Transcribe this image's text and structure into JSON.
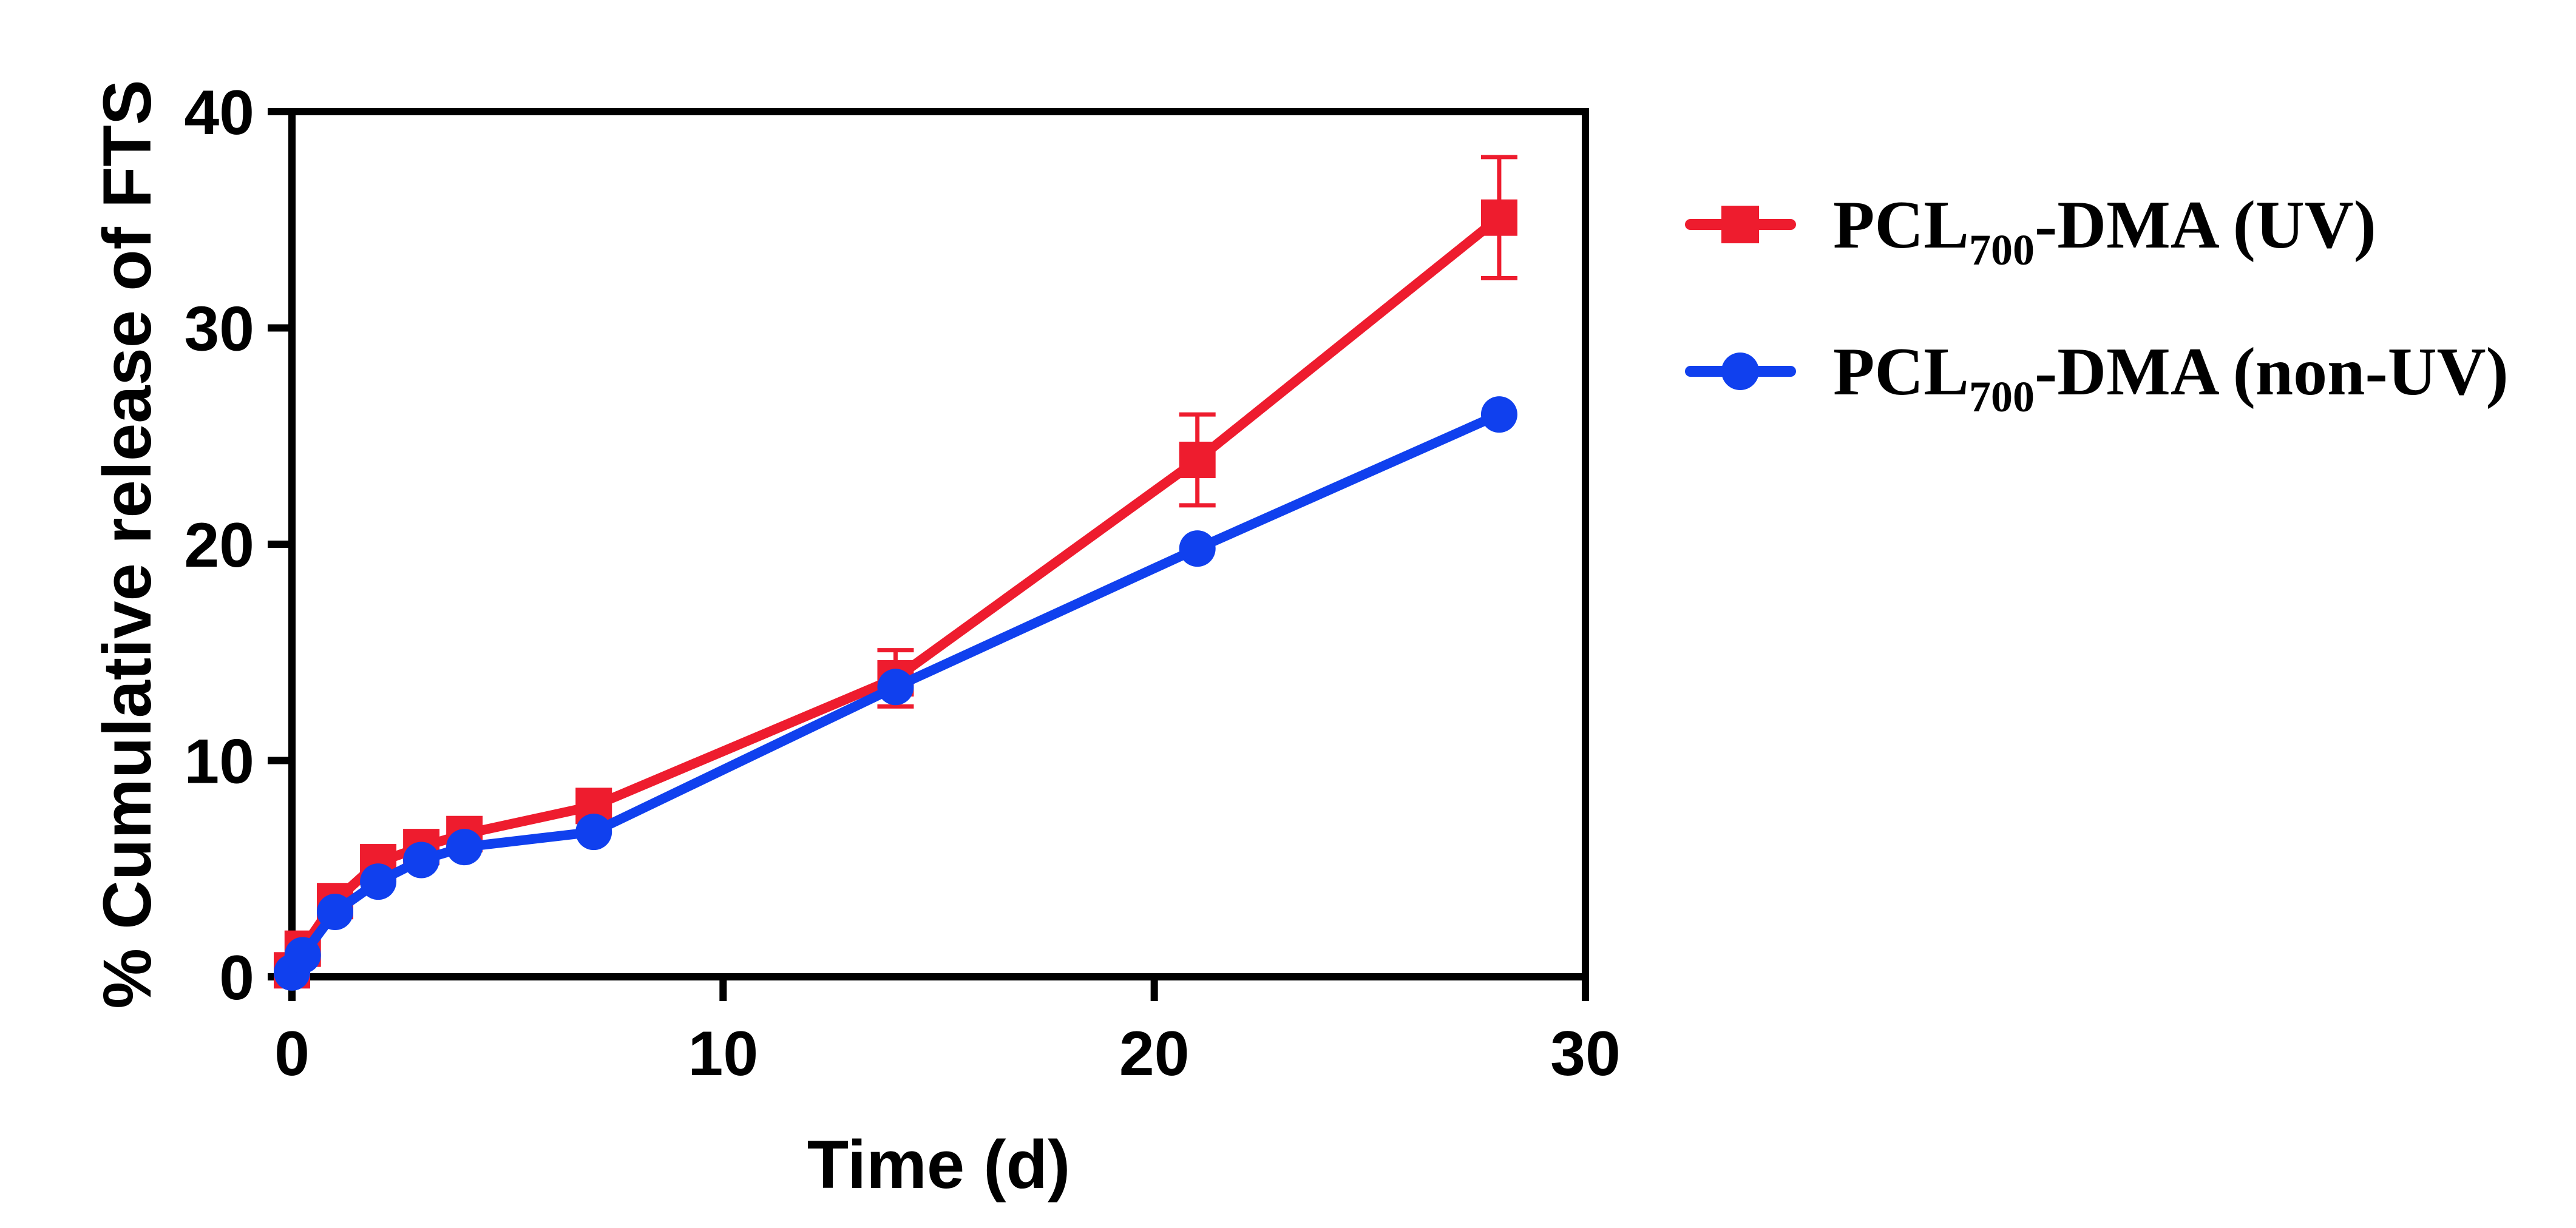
{
  "chart_data": {
    "type": "line",
    "title": "",
    "xlabel": "Time (d)",
    "ylabel": "% Cumulative release of FTS",
    "xlim": [
      0,
      30
    ],
    "ylim": [
      0,
      40
    ],
    "xticks": [
      0,
      10,
      20,
      30
    ],
    "yticks": [
      0,
      10,
      20,
      30,
      40
    ],
    "x_tick_labels": [
      "0",
      "10",
      "20",
      "30"
    ],
    "y_tick_labels": [
      "0",
      "10",
      "20",
      "30",
      "40"
    ],
    "grid": false,
    "legend_position": "right",
    "series": [
      {
        "name": "PCL700-DMA (UV)",
        "legend_main": "PCL",
        "legend_sub": "700",
        "legend_rest": "-DMA (UV)",
        "color": "#ee1c2e",
        "marker": "square",
        "x": [
          0,
          0.25,
          1,
          2,
          3,
          4,
          7,
          14,
          21,
          28
        ],
        "y": [
          0.3,
          1.3,
          3.5,
          5.3,
          6.0,
          6.6,
          7.9,
          13.8,
          23.9,
          35.1
        ],
        "error": [
          0,
          0,
          0,
          0,
          0,
          0,
          0,
          1.3,
          2.1,
          2.8
        ]
      },
      {
        "name": "PCL700-DMA (non-UV)",
        "legend_main": "PCL",
        "legend_sub": "700",
        "legend_rest": "-DMA (non-UV)",
        "color": "#1040ee",
        "marker": "circle",
        "x": [
          0,
          0.25,
          1,
          2,
          3,
          4,
          7,
          14,
          21,
          28
        ],
        "y": [
          0.2,
          1.0,
          3.0,
          4.4,
          5.4,
          6.0,
          6.7,
          13.4,
          19.8,
          26.0
        ],
        "error": [
          0,
          0,
          0,
          0,
          0,
          0,
          0,
          0,
          0,
          0
        ]
      }
    ]
  }
}
